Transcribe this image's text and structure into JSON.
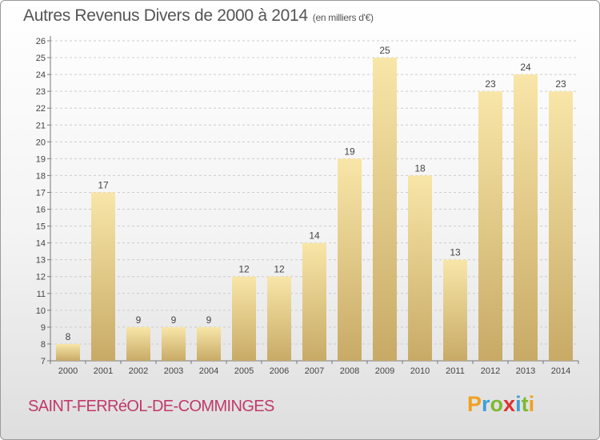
{
  "title": "Autres Revenus Divers de 2000 à 2014",
  "subtitle": "(en milliers d'€)",
  "commune": "SAINT-FERRéOL-DE-COMMINGES",
  "logo": {
    "letters": [
      "P",
      "r",
      "o",
      "x",
      "i",
      "t",
      "i"
    ],
    "colors": [
      "#f0a020",
      "#3aa0d8",
      "#80b830",
      "#e03030",
      "#3aa0d8",
      "#80b830",
      "#f0a020"
    ]
  },
  "colors": {
    "bar_light": "#f8e6a8",
    "bar_dark": "#c8aa66",
    "commune": "#c0396a",
    "grid": "#cccccc"
  },
  "chart_data": {
    "type": "bar",
    "title": "Autres Revenus Divers de 2000 à 2014",
    "subtitle": "(en milliers d'€)",
    "categories": [
      "2000",
      "2001",
      "2002",
      "2003",
      "2004",
      "2005",
      "2006",
      "2007",
      "2008",
      "2009",
      "2010",
      "2011",
      "2012",
      "2013",
      "2014"
    ],
    "values": [
      8,
      17,
      9,
      9,
      9,
      12,
      12,
      14,
      19,
      25,
      18,
      13,
      23,
      24,
      23
    ],
    "ylim": [
      7,
      26
    ],
    "yticks": [
      7,
      8,
      9,
      10,
      11,
      12,
      13,
      14,
      15,
      16,
      17,
      18,
      19,
      20,
      21,
      22,
      23,
      24,
      25,
      26
    ],
    "grid": true,
    "xlabel": "",
    "ylabel": ""
  }
}
